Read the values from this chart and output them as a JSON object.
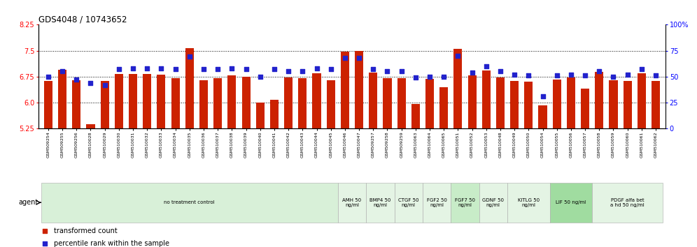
{
  "title": "GDS4048 / 10743652",
  "ylim_left": [
    5.25,
    8.25
  ],
  "ylim_right": [
    0,
    100
  ],
  "yticks_left": [
    5.25,
    6.0,
    6.75,
    7.5,
    8.25
  ],
  "yticks_right": [
    0,
    25,
    50,
    75,
    100
  ],
  "bar_color": "#cc2200",
  "dot_color": "#2222cc",
  "samples": [
    "GSM509254",
    "GSM509255",
    "GSM509256",
    "GSM510028",
    "GSM510029",
    "GSM510030",
    "GSM510031",
    "GSM510032",
    "GSM510033",
    "GSM510034",
    "GSM510035",
    "GSM510036",
    "GSM510037",
    "GSM510038",
    "GSM510039",
    "GSM510040",
    "GSM510041",
    "GSM510042",
    "GSM510043",
    "GSM510044",
    "GSM510045",
    "GSM510046",
    "GSM510047",
    "GSM509257",
    "GSM509258",
    "GSM509259",
    "GSM510063",
    "GSM510064",
    "GSM510065",
    "GSM510051",
    "GSM510052",
    "GSM510053",
    "GSM510048",
    "GSM510049",
    "GSM510050",
    "GSM510054",
    "GSM510055",
    "GSM510056",
    "GSM510057",
    "GSM510058",
    "GSM510059",
    "GSM510060",
    "GSM510061",
    "GSM510062"
  ],
  "bar_values": [
    6.62,
    6.95,
    6.65,
    5.38,
    6.62,
    6.82,
    6.82,
    6.82,
    6.8,
    6.7,
    7.57,
    6.65,
    6.7,
    6.78,
    6.75,
    6.0,
    6.08,
    6.72,
    6.7,
    6.85,
    6.65,
    7.47,
    7.5,
    6.86,
    6.7,
    6.7,
    5.95,
    6.68,
    6.44,
    7.55,
    6.78,
    6.92,
    6.72,
    6.63,
    6.6,
    5.92,
    6.67,
    6.72,
    6.4,
    6.88,
    6.64,
    6.62,
    6.85,
    6.62
  ],
  "dot_values_pct": [
    50,
    55,
    47,
    44,
    42,
    57,
    58,
    58,
    58,
    57,
    69,
    57,
    57,
    58,
    57,
    50,
    57,
    55,
    55,
    58,
    57,
    68,
    68,
    57,
    55,
    55,
    49,
    50,
    50,
    70,
    54,
    60,
    55,
    52,
    51,
    31,
    51,
    52,
    51,
    55,
    50,
    52,
    57,
    51
  ],
  "groups": [
    {
      "label": "no treatment control",
      "start": 0,
      "end": 21,
      "color": "#d8f0d8"
    },
    {
      "label": "AMH 50\nng/ml",
      "start": 21,
      "end": 23,
      "color": "#e4f4e4"
    },
    {
      "label": "BMP4 50\nng/ml",
      "start": 23,
      "end": 25,
      "color": "#e4f4e4"
    },
    {
      "label": "CTGF 50\nng/ml",
      "start": 25,
      "end": 27,
      "color": "#e4f4e4"
    },
    {
      "label": "FGF2 50\nng/ml",
      "start": 27,
      "end": 29,
      "color": "#e4f4e4"
    },
    {
      "label": "FGF7 50\nng/ml",
      "start": 29,
      "end": 31,
      "color": "#c8ecc8"
    },
    {
      "label": "GDNF 50\nng/ml",
      "start": 31,
      "end": 33,
      "color": "#e4f4e4"
    },
    {
      "label": "KITLG 50\nng/ml",
      "start": 33,
      "end": 36,
      "color": "#e4f4e4"
    },
    {
      "label": "LIF 50 ng/ml",
      "start": 36,
      "end": 39,
      "color": "#a0dca0"
    },
    {
      "label": "PDGF alfa bet\na hd 50 ng/ml",
      "start": 39,
      "end": 44,
      "color": "#e4f4e4"
    }
  ],
  "agent_label": "agent",
  "legend_bar_label": "transformed count",
  "legend_dot_label": "percentile rank within the sample",
  "hgrid_lines": [
    6.0,
    6.75,
    7.5
  ],
  "fig_width": 9.96,
  "fig_height": 3.54,
  "dpi": 100
}
